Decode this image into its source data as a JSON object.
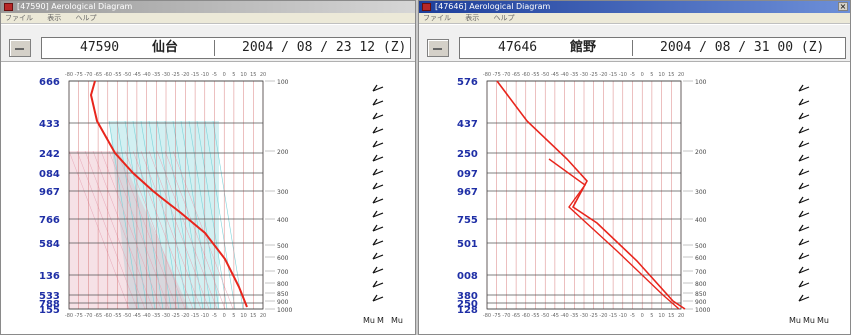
{
  "colors": {
    "profile": "#e8251c",
    "blue_label": "#1f2fa6",
    "grid_red": "#d06060",
    "grid_gray": "#555555",
    "cyan": "#7fd3d9",
    "pink": "#e6a8b8"
  },
  "windows": [
    {
      "title": "[47590] Aerological Diagram",
      "menu": [
        "ファイル",
        "表示",
        "ヘルプ"
      ],
      "station_number": "47590",
      "station_name": "仙台",
      "datetime": "2004 / 08 / 23 12 (Z)",
      "pressure_labels": [
        "666",
        "433",
        "242",
        "084",
        "967",
        "766",
        "584",
        "136",
        "533",
        "788",
        "155"
      ],
      "height_labels": [
        "100",
        "200",
        "300",
        "400",
        "500",
        "600",
        "700",
        "800",
        "850",
        "900",
        "1000"
      ],
      "temp_ticks": [
        "-80",
        "-75",
        "-70",
        "-65",
        "-60",
        "-55",
        "-50",
        "-45",
        "-40",
        "-35",
        "-30",
        "-25",
        "-20",
        "-15",
        "-10",
        "-5",
        "0",
        "5",
        "10",
        "15",
        "20"
      ],
      "wind_labels": [
        "Mu",
        "M",
        "Mu"
      ]
    },
    {
      "title": "[47646] Aerological Diagram",
      "menu": [
        "ファイル",
        "表示",
        "ヘルプ"
      ],
      "station_number": "47646",
      "station_name": "館野",
      "datetime": "2004 / 08 / 31 00 (Z)",
      "pressure_labels": [
        "576",
        "437",
        "250",
        "097",
        "967",
        "755",
        "501",
        "008",
        "380",
        "250",
        "128"
      ],
      "height_labels": [
        "100",
        "200",
        "300",
        "400",
        "500",
        "600",
        "700",
        "800",
        "850",
        "900",
        "1000"
      ],
      "temp_ticks": [
        "-80",
        "-75",
        "-70",
        "-65",
        "-60",
        "-55",
        "-50",
        "-45",
        "-40",
        "-35",
        "-30",
        "-25",
        "-20",
        "-15",
        "-10",
        "-5",
        "0",
        "5",
        "10",
        "15",
        "20"
      ],
      "wind_labels": [
        "Mu",
        "Mu",
        "Mu"
      ]
    }
  ]
}
